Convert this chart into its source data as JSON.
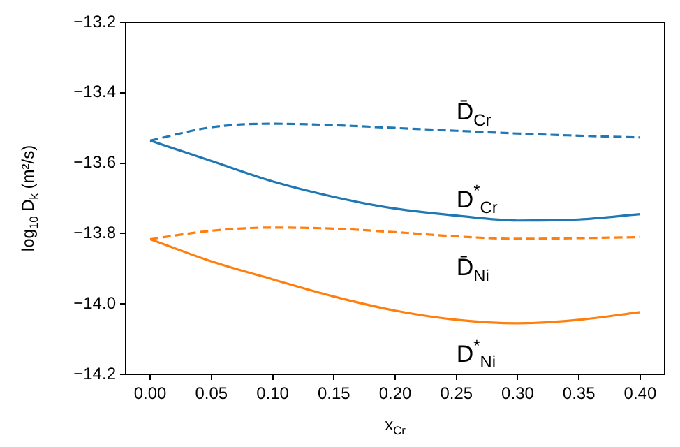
{
  "chart_data": {
    "type": "line",
    "xlabel": "x$_{Cr}$",
    "ylabel": "log$_{10}$ D$_{k}$ (m²/s)",
    "xlim": [
      -0.02,
      0.42
    ],
    "ylim": [
      -14.2,
      -13.2
    ],
    "xticks": [
      {
        "value": 0,
        "label": "0.00"
      },
      {
        "value": 0.05,
        "label": "0.05"
      },
      {
        "value": 0.1,
        "label": "0.10"
      },
      {
        "value": 0.15,
        "label": "0.15"
      },
      {
        "value": 0.2,
        "label": "0.20"
      },
      {
        "value": 0.25,
        "label": "0.25"
      },
      {
        "value": 0.3,
        "label": "0.30"
      },
      {
        "value": 0.35,
        "label": "0.35"
      },
      {
        "value": 0.4,
        "label": "0.40"
      }
    ],
    "yticks": [
      {
        "value": -14.2,
        "label": "−14.2"
      },
      {
        "value": -14,
        "label": "−14.0"
      },
      {
        "value": -13.8,
        "label": "−13.8"
      },
      {
        "value": -13.6,
        "label": "−13.6"
      },
      {
        "value": -13.4,
        "label": "−13.4"
      },
      {
        "value": -13.2,
        "label": "−13.2"
      }
    ],
    "grid": false,
    "legend": false,
    "marker": "none",
    "series": [
      {
        "name": "D̄$_{Cr}$",
        "color": "#1f77b4",
        "line_style": "dashed",
        "x": [
          0,
          0.05,
          0.1,
          0.15,
          0.2,
          0.25,
          0.3,
          0.35,
          0.4
        ],
        "values": [
          -13.536,
          -13.498,
          -13.488,
          -13.492,
          -13.5,
          -13.508,
          -13.516,
          -13.522,
          -13.527
        ]
      },
      {
        "name": "D$^{*}$$_{Cr}$",
        "color": "#1f77b4",
        "line_style": "solid",
        "x": [
          0,
          0.05,
          0.1,
          0.15,
          0.2,
          0.25,
          0.3,
          0.35,
          0.4
        ],
        "values": [
          -13.536,
          -13.594,
          -13.652,
          -13.696,
          -13.729,
          -13.749,
          -13.763,
          -13.76,
          -13.745
        ]
      },
      {
        "name": "D̄$_{Ni}$",
        "color": "#ff7f0e",
        "line_style": "dashed",
        "x": [
          0,
          0.05,
          0.1,
          0.15,
          0.2,
          0.25,
          0.3,
          0.35,
          0.4
        ],
        "values": [
          -13.816,
          -13.792,
          -13.783,
          -13.786,
          -13.796,
          -13.808,
          -13.815,
          -13.813,
          -13.81
        ]
      },
      {
        "name": "D$^{*}$$_{Ni}$",
        "color": "#ff7f0e",
        "line_style": "solid",
        "x": [
          0,
          0.05,
          0.1,
          0.15,
          0.2,
          0.25,
          0.3,
          0.35,
          0.4
        ],
        "values": [
          -13.816,
          -13.879,
          -13.93,
          -13.979,
          -14.019,
          -14.045,
          -14.055,
          -14.045,
          -14.023
        ]
      }
    ]
  }
}
